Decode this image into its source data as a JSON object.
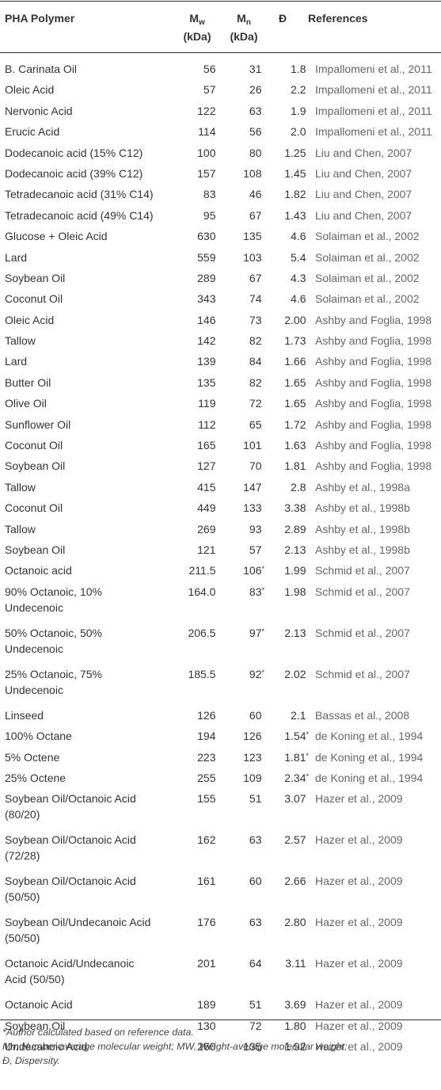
{
  "header": {
    "polymer": "PHA Polymer",
    "mw_main": "M",
    "mw_sub": "w",
    "mw_unit": "(kDa)",
    "mn_main": "M",
    "mn_sub": "n",
    "mn_unit": "(kDa)",
    "dispersity": "Đ",
    "references": "References"
  },
  "rows": [
    {
      "polymer": "B. Carinata Oil",
      "mw": "56",
      "mn": "31",
      "d": "1.8",
      "ref": "Impallomeni et al., 2011"
    },
    {
      "polymer": "Oleic Acid",
      "mw": "57",
      "mn": "26",
      "d": "2.2",
      "ref": "Impallomeni et al., 2011"
    },
    {
      "polymer": "Nervonic Acid",
      "mw": "122",
      "mn": "63",
      "d": "1.9",
      "ref": "Impallomeni et al., 2011"
    },
    {
      "polymer": "Erucic Acid",
      "mw": "114",
      "mn": "56",
      "d": "2.0",
      "ref": "Impallomeni et al., 2011"
    },
    {
      "polymer": "Dodecanoic acid (15% C12)",
      "mw": "100",
      "mn": "80",
      "d": "1.25",
      "ref": "Liu and Chen, 2007"
    },
    {
      "polymer": "Dodecanoic acid (39% C12)",
      "mw": "157",
      "mn": "108",
      "d": "1.45",
      "ref": "Liu and Chen, 2007"
    },
    {
      "polymer": "Tetradecanoic acid (31% C14)",
      "mw": "83",
      "mn": "46",
      "d": "1.82",
      "ref": "Liu and Chen, 2007"
    },
    {
      "polymer": "Tetradecanoic acid (49% C14)",
      "mw": "95",
      "mn": "67",
      "d": "1.43",
      "ref": "Liu and Chen, 2007"
    },
    {
      "polymer": "Glucose + Oleic Acid",
      "mw": "630",
      "mn": "135",
      "d": "4.6",
      "ref": "Solaiman et al., 2002"
    },
    {
      "polymer": "Lard",
      "mw": "559",
      "mn": "103",
      "d": "5.4",
      "ref": "Solaiman et al., 2002"
    },
    {
      "polymer": "Soybean Oil",
      "mw": "289",
      "mn": "67",
      "d": "4.3",
      "ref": "Solaiman et al., 2002"
    },
    {
      "polymer": "Coconut Oil",
      "mw": "343",
      "mn": "74",
      "d": "4.6",
      "ref": "Solaiman et al., 2002"
    },
    {
      "polymer": "Oleic Acid",
      "mw": "146",
      "mn": "73",
      "d": "2.00",
      "ref": "Ashby and Foglia, 1998"
    },
    {
      "polymer": "Tallow",
      "mw": "142",
      "mn": "82",
      "d": "1.73",
      "ref": "Ashby and Foglia, 1998"
    },
    {
      "polymer": "Lard",
      "mw": "139",
      "mn": "84",
      "d": "1.66",
      "ref": "Ashby and Foglia, 1998"
    },
    {
      "polymer": "Butter Oil",
      "mw": "135",
      "mn": "82",
      "d": "1.65",
      "ref": "Ashby and Foglia, 1998"
    },
    {
      "polymer": "Olive Oil",
      "mw": "119",
      "mn": "72",
      "d": "1.65",
      "ref": "Ashby and Foglia, 1998"
    },
    {
      "polymer": "Sunflower Oil",
      "mw": "112",
      "mn": "65",
      "d": "1.72",
      "ref": "Ashby and Foglia, 1998"
    },
    {
      "polymer": "Coconut Oil",
      "mw": "165",
      "mn": "101",
      "d": "1.63",
      "ref": "Ashby and Foglia, 1998"
    },
    {
      "polymer": "Soybean Oil",
      "mw": "127",
      "mn": "70",
      "d": "1.81",
      "ref": "Ashby and Foglia, 1998"
    },
    {
      "polymer": "Tallow",
      "mw": "415",
      "mn": "147",
      "d": "2.8",
      "ref": "Ashby et al., 1998a"
    },
    {
      "polymer": "Coconut Oil",
      "mw": "449",
      "mn": "133",
      "d": "3.38",
      "ref": "Ashby et al., 1998b"
    },
    {
      "polymer": "Tallow",
      "mw": "269",
      "mn": "93",
      "d": "2.89",
      "ref": "Ashby et al., 1998b"
    },
    {
      "polymer": "Soybean Oil",
      "mw": "121",
      "mn": "57",
      "d": "2.13",
      "ref": "Ashby et al., 1998b"
    },
    {
      "polymer": "Octanoic acid",
      "mw": "211.5",
      "mn": "106",
      "mn_ast": "*",
      "d": "1.99",
      "ref": "Schmid et al., 2007"
    },
    {
      "polymer": "90% Octanoic, 10%",
      "polymer2": "Undecenoic",
      "mw": "164.0",
      "mn": "83",
      "mn_ast": "*",
      "d": "1.98",
      "ref": "Schmid et al., 2007"
    },
    {
      "polymer": "50% Octanoic, 50%",
      "polymer2": "Undecenoic",
      "mw": "206.5",
      "mn": "97",
      "mn_ast": "*",
      "d": "2.13",
      "ref": "Schmid et al., 2007"
    },
    {
      "polymer": "25% Octanoic, 75%",
      "polymer2": "Undecenoic",
      "mw": "185.5",
      "mn": "92",
      "mn_ast": "*",
      "d": "2.02",
      "ref": "Schmid et al., 2007"
    },
    {
      "polymer": "Linseed",
      "mw": "126",
      "mn": "60",
      "d": "2.1",
      "ref": "Bassas et al., 2008"
    },
    {
      "polymer": "100% Octane",
      "mw": "194",
      "mn": "126",
      "d": "1.54",
      "d_ast": "*",
      "ref": "de Koning et al., 1994"
    },
    {
      "polymer": "5% Octene",
      "mw": "223",
      "mn": "123",
      "d": "1.81",
      "d_ast": "*",
      "ref": "de Koning et al., 1994"
    },
    {
      "polymer": "25% Octene",
      "mw": "255",
      "mn": "109",
      "d": "2.34",
      "d_ast": "*",
      "ref": "de Koning et al., 1994"
    },
    {
      "polymer": "Soybean Oil/Octanoic Acid",
      "polymer2": "(80/20)",
      "mw": "155",
      "mn": "51",
      "d": "3.07",
      "ref": "Hazer et al., 2009"
    },
    {
      "polymer": "Soybean Oil/Octanoic Acid",
      "polymer2": "(72/28)",
      "mw": "162",
      "mn": "63",
      "d": "2.57",
      "ref": "Hazer et al., 2009"
    },
    {
      "polymer": "Soybean Oil/Octanoic Acid",
      "polymer2": "(50/50)",
      "mw": "161",
      "mn": "60",
      "d": "2.66",
      "ref": "Hazer et al., 2009"
    },
    {
      "polymer": "Soybean Oil/Undecanoic Acid",
      "polymer2": "(50/50)",
      "mw": "176",
      "mn": "63",
      "d": "2.80",
      "ref": "Hazer et al., 2009"
    },
    {
      "polymer": "Octanoic Acid/Undecanoic",
      "polymer2": "Acid (50/50)",
      "mw": "201",
      "mn": "64",
      "d": "3.11",
      "ref": "Hazer et al., 2009"
    },
    {
      "polymer": "Octanoic Acid",
      "mw": "189",
      "mn": "51",
      "d": "3.69",
      "ref": "Hazer et al., 2009"
    },
    {
      "polymer": "Soybean Oil",
      "mw": "130",
      "mn": "72",
      "d": "1.80",
      "ref": "Hazer et al., 2009"
    },
    {
      "polymer": "Undecanoic Acid",
      "mw": "260",
      "mn": "135",
      "d": "1.92",
      "ref": "Hazer et al., 2009"
    }
  ],
  "footnotes": {
    "note1": "*Author calculated based on reference data.",
    "note2": "Mn, Number-average molecular weight; MW, Weight-average molecular weight;",
    "note3": "Đ, Dispersity."
  }
}
